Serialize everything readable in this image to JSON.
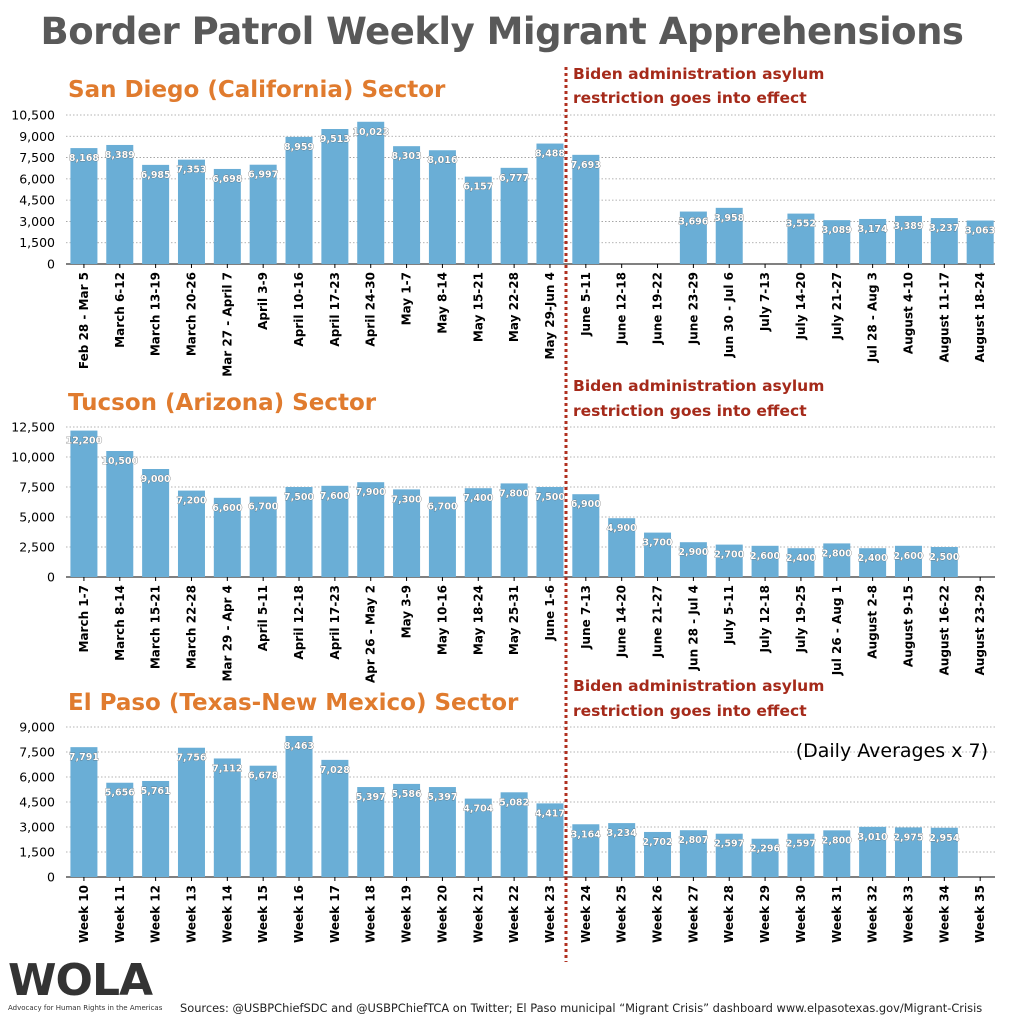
{
  "title": "Border Patrol Weekly Migrant Apprehensions",
  "annotation": "Biden administration asylum restriction goes into effect",
  "daily_note": "(Daily Averages x 7)",
  "logo": {
    "text": "WOLA",
    "tagline": "Advocacy for Human Rights in the Americas"
  },
  "source": "Sources: @USBPChiefSDC and @USBPChiefTCA on Twitter; El Paso municipal “Migrant Crisis” dashboard www.elpasotexas.gov/Migrant-Crisis",
  "colors": {
    "bar": "#6aaed6",
    "title": "#595959",
    "sector": "#e07b2e",
    "annotation": "#a52a1a",
    "divider": "#b03020"
  },
  "chart_data": [
    {
      "type": "bar",
      "title": "San Diego (California) Sector",
      "ylim": [
        0,
        10500
      ],
      "yticks": [
        "0",
        "1,500",
        "3,000",
        "4,500",
        "6,000",
        "7,500",
        "9,000",
        "10,500"
      ],
      "grid": true,
      "categories": [
        "Feb 28 - Mar 5",
        "March 6-12",
        "March 13-19",
        "March 20-26",
        "Mar 27 - April 7",
        "April 3-9",
        "April 10-16",
        "April 17-23",
        "April 24-30",
        "May 1-7",
        "May 8-14",
        "May 15-21",
        "May 22-28",
        "May 29-Jun 4",
        "June 5-11",
        "June 12-18",
        "June 19-22",
        "June 23-29",
        "Jun 30 - Jul 6",
        "July 7-13",
        "July 14-20",
        "July 21-27",
        "Jul 28 - Aug 3",
        "August 4-10",
        "August 11-17",
        "August 18-24"
      ],
      "values": [
        8168,
        8389,
        6985,
        7353,
        6698,
        6997,
        8959,
        9513,
        10023,
        8303,
        8016,
        6157,
        6777,
        8488,
        7693,
        null,
        null,
        3696,
        3958,
        null,
        3552,
        3089,
        3174,
        3389,
        3237,
        3063
      ],
      "value_labels": [
        "8,168",
        "8,389",
        "6,985",
        "7,353",
        "6,698",
        "6,997",
        "8,959",
        "9,513",
        "10,023",
        "8,303",
        "8,016",
        "6,157",
        "6,777",
        "8,488",
        "7,693",
        "",
        "",
        "3,696",
        "3,958",
        "",
        "3,552",
        "3,089",
        "3,174",
        "3,389",
        "3,237",
        "3,063"
      ]
    },
    {
      "type": "bar",
      "title": "Tucson (Arizona) Sector",
      "ylim": [
        0,
        12500
      ],
      "yticks": [
        "0",
        "2,500",
        "5,000",
        "7,500",
        "10,000",
        "12,500"
      ],
      "grid": true,
      "categories": [
        "March 1-7",
        "March 8-14",
        "March 15-21",
        "March 22-28",
        "Mar 29 - Apr 4",
        "April 5-11",
        "April 12-18",
        "April 17-23",
        "Apr 26 - May 2",
        "May 3-9",
        "May 10-16",
        "May 18-24",
        "May 25-31",
        "June 1-6",
        "June 7-13",
        "June 14-20",
        "June 21-27",
        "Jun 28 - Jul 4",
        "July 5-11",
        "July 12-18",
        "July 19-25",
        "Jul 26 - Aug 1",
        "August 2-8",
        "August 9-15",
        "August 16-22",
        "August 23-29"
      ],
      "values": [
        12200,
        10500,
        9000,
        7200,
        6600,
        6700,
        7500,
        7600,
        7900,
        7300,
        6700,
        7400,
        7800,
        7500,
        6900,
        4900,
        3700,
        2900,
        2700,
        2600,
        2400,
        2800,
        2400,
        2600,
        2500,
        null
      ],
      "value_labels": [
        "12,200",
        "10,500",
        "9,000",
        "7,200",
        "6,600",
        "6,700",
        "7,500",
        "7,600",
        "7,900",
        "7,300",
        "6,700",
        "7,400",
        "7,800",
        "7,500",
        "6,900",
        "4,900",
        "3,700",
        "2,900",
        "2,700",
        "2,600",
        "2,400",
        "2,800",
        "2,400",
        "2,600",
        "2,500",
        ""
      ]
    },
    {
      "type": "bar",
      "title": "El Paso (Texas-New Mexico) Sector",
      "ylim": [
        0,
        9000
      ],
      "yticks": [
        "0",
        "1,500",
        "3,000",
        "4,500",
        "6,000",
        "7,500",
        "9,000"
      ],
      "grid": true,
      "categories": [
        "Week 10",
        "Week 11",
        "Week 12",
        "Week 13",
        "Week 14",
        "Week 15",
        "Week 16",
        "Week 17",
        "Week 18",
        "Week 19",
        "Week 20",
        "Week 21",
        "Week 22",
        "Week 23",
        "Week 24",
        "Week 25",
        "Week 26",
        "Week 27",
        "Week 28",
        "Week 29",
        "Week 30",
        "Week 31",
        "Week 32",
        "Week 33",
        "Week 34",
        "Week 35"
      ],
      "values": [
        7791,
        5656,
        5761,
        7756,
        7112,
        6678,
        8463,
        7028,
        5397,
        5586,
        5397,
        4704,
        5082,
        4417,
        3164,
        3234,
        2702,
        2807,
        2597,
        2296,
        2597,
        2800,
        3010,
        2975,
        2954,
        null
      ],
      "value_labels": [
        "7,791",
        "5,656",
        "5,761",
        "7,756",
        "7,112",
        "6,678",
        "8,463",
        "7,028",
        "5,397",
        "5,586",
        "5,397",
        "4,704",
        "5,082",
        "4,417",
        "3,164",
        "3,234",
        "2,702",
        "2,807",
        "2,597",
        "2,296",
        "2,597",
        "2,800",
        "3,010",
        "2,975",
        "2,954",
        ""
      ]
    }
  ]
}
